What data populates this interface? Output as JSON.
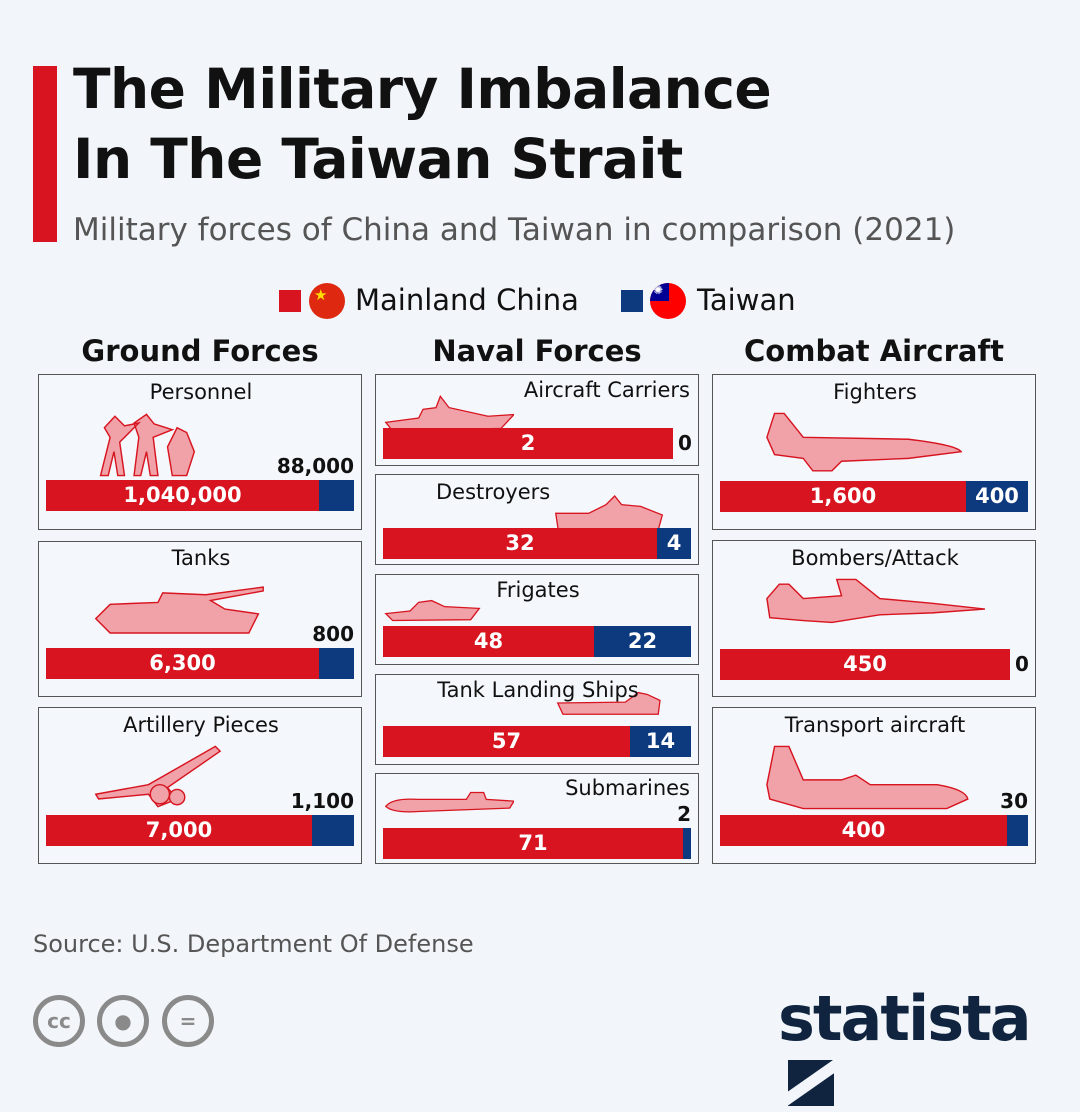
{
  "title_line1": "The Military Imbalance",
  "title_line2": "In The Taiwan Strait",
  "subtitle": "Military forces of China and Taiwan in comparison (2021)",
  "legend": [
    {
      "label": "Mainland China",
      "color": "#d7141f"
    },
    {
      "label": "Taiwan",
      "color": "#0d3a7f"
    }
  ],
  "source": "Source: U.S. Department Of Defense",
  "logo": "statista",
  "license_icons": [
    "cc-icon",
    "attribution-icon",
    "no-derivatives-icon"
  ],
  "chart_data": {
    "type": "bar",
    "subtype": "stacked-horizontal-comparison",
    "title": "The Military Imbalance In The Taiwan Strait",
    "series": [
      "Mainland China",
      "Taiwan"
    ],
    "groups": [
      {
        "title": "Ground Forces",
        "items": [
          {
            "label": "Personnel",
            "china": 1040000,
            "taiwan": 88000,
            "china_text": "1,040,000",
            "taiwan_text": "88,000",
            "icon": "soldiers-icon"
          },
          {
            "label": "Tanks",
            "china": 6300,
            "taiwan": 800,
            "china_text": "6,300",
            "taiwan_text": "800",
            "icon": "tank-icon"
          },
          {
            "label": "Artillery Pieces",
            "china": 7000,
            "taiwan": 1100,
            "china_text": "7,000",
            "taiwan_text": "1,100",
            "icon": "artillery-icon"
          }
        ]
      },
      {
        "title": "Naval Forces",
        "items": [
          {
            "label": "Aircraft Carriers",
            "china": 2,
            "taiwan": 0,
            "china_text": "2",
            "taiwan_text": "0",
            "icon": "aircraft-carrier-icon"
          },
          {
            "label": "Destroyers",
            "china": 32,
            "taiwan": 4,
            "china_text": "32",
            "taiwan_text": "4",
            "icon": "destroyer-icon"
          },
          {
            "label": "Frigates",
            "china": 48,
            "taiwan": 22,
            "china_text": "48",
            "taiwan_text": "22",
            "icon": "frigate-icon"
          },
          {
            "label": "Tank Landing Ships",
            "china": 57,
            "taiwan": 14,
            "china_text": "57",
            "taiwan_text": "14",
            "icon": "landing-ship-icon"
          },
          {
            "label": "Submarines",
            "china": 71,
            "taiwan": 2,
            "china_text": "71",
            "taiwan_text": "2",
            "icon": "submarine-icon"
          }
        ]
      },
      {
        "title": "Combat Aircraft",
        "items": [
          {
            "label": "Fighters",
            "china": 1600,
            "taiwan": 400,
            "china_text": "1,600",
            "taiwan_text": "400",
            "icon": "fighter-jet-icon"
          },
          {
            "label": "Bombers/Attack",
            "china": 450,
            "taiwan": 0,
            "china_text": "450",
            "taiwan_text": "0",
            "icon": "bomber-icon"
          },
          {
            "label": "Transport aircraft",
            "china": 400,
            "taiwan": 30,
            "china_text": "400",
            "taiwan_text": "30",
            "icon": "transport-plane-icon"
          }
        ]
      }
    ]
  }
}
